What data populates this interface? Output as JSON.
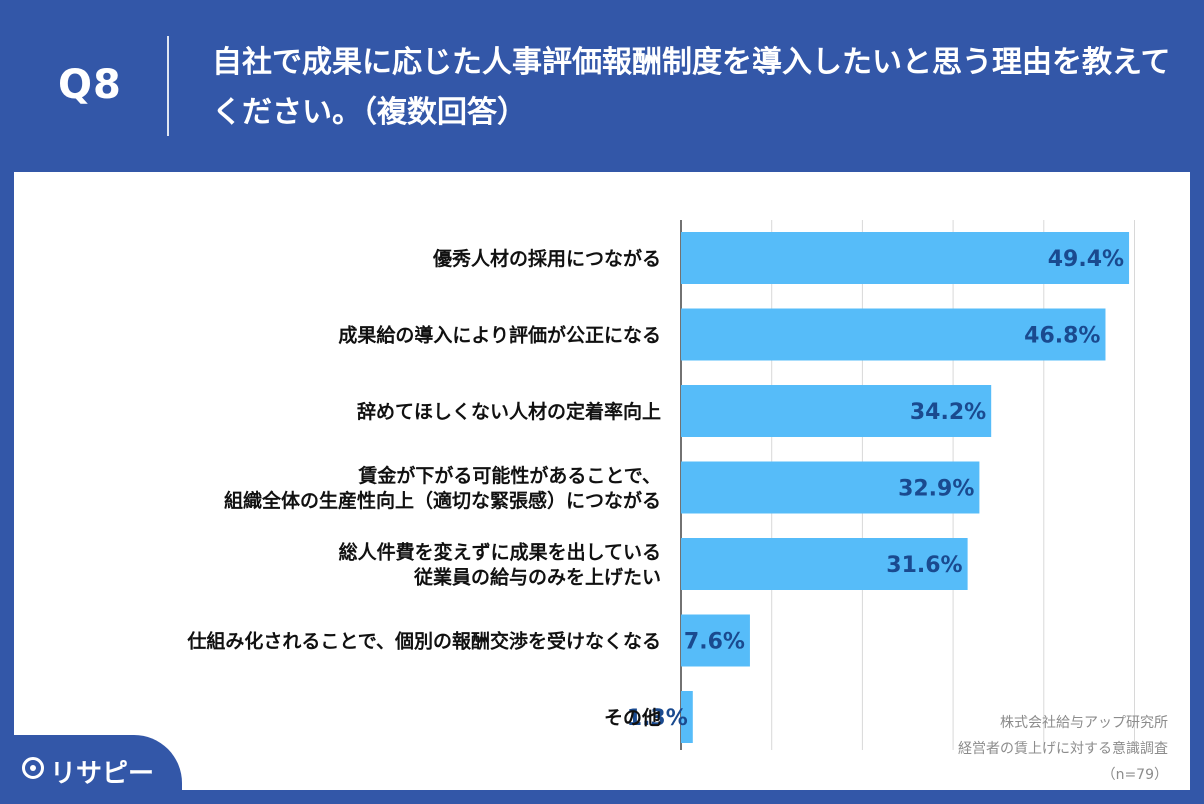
{
  "header": {
    "q_label": "Q8",
    "title": "自社で成果に応じた人事評価報酬制度を導入したいと思う理由を教えてください。（複数回答）"
  },
  "source": {
    "line1": "株式会社給与アップ研究所",
    "line2": "経営者の賃上げに対する意識調査",
    "line3": "（n=79）"
  },
  "logo": {
    "icon": "pin-icon",
    "text": "リサピー"
  },
  "colors": {
    "header_bg": "#3357a8",
    "bar": "#56bcf9",
    "value_text": "#1a4a8f"
  },
  "chart_data": {
    "type": "bar",
    "orientation": "horizontal",
    "unit": "%",
    "grid": true,
    "xlim": [
      0,
      60
    ],
    "categories": [
      [
        "優秀人材の採用につながる"
      ],
      [
        "成果給の導入により評価が公正になる"
      ],
      [
        "辞めてほしくない人材の定着率向上"
      ],
      [
        "賃金が下がる可能性があることで、",
        "組織全体の生産性向上（適切な緊張感）につながる"
      ],
      [
        "総人件費を変えずに成果を出している",
        "従業員の給与のみを上げたい"
      ],
      [
        "仕組み化されることで、個別の報酬交渉を受けなくなる"
      ],
      [
        "その他"
      ]
    ],
    "values": [
      49.4,
      46.8,
      34.2,
      32.9,
      31.6,
      7.6,
      1.3
    ],
    "value_labels": [
      "49.4%",
      "46.8%",
      "34.2%",
      "32.9%",
      "31.6%",
      "7.6%",
      "1.3%"
    ]
  }
}
